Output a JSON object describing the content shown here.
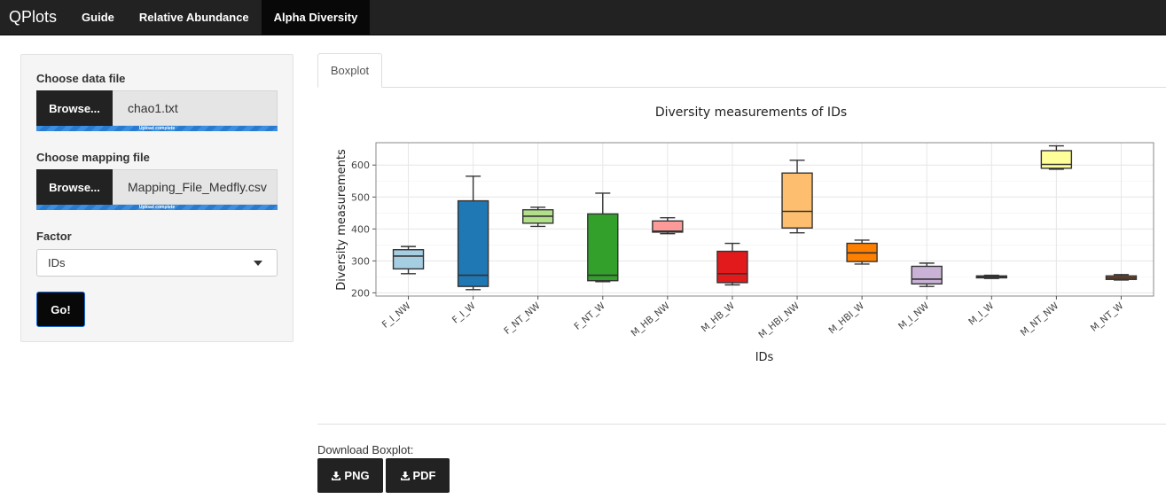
{
  "navbar": {
    "brand": "QPlots",
    "items": [
      {
        "label": "Guide"
      },
      {
        "label": "Relative Abundance"
      },
      {
        "label": "Alpha Diversity"
      }
    ]
  },
  "sidebar": {
    "data_file": {
      "label": "Choose data file",
      "browse_label": "Browse...",
      "file_name": "chao1.txt",
      "progress_text": "Upload complete"
    },
    "mapping_file": {
      "label": "Choose mapping file",
      "browse_label": "Browse...",
      "file_name": "Mapping_File_Medfly.csv",
      "progress_text": "Upload complete"
    },
    "factor": {
      "label": "Factor",
      "selected": "IDs"
    },
    "go_label": "Go!"
  },
  "tabs": [
    {
      "label": "Boxplot"
    }
  ],
  "download": {
    "label": "Download Boxplot:",
    "png_label": "PNG",
    "pdf_label": "PDF"
  },
  "chart_data": {
    "type": "box",
    "title": "Diversity measurements of IDs",
    "xlabel": "IDs",
    "ylabel": "Diversity measurements",
    "ylim": [
      190,
      670
    ],
    "yticks": [
      200,
      300,
      400,
      500,
      600
    ],
    "grid": true,
    "legend": "none",
    "categories": [
      "F_I_NW",
      "F_I_W",
      "F_NT_NW",
      "F_NT_W",
      "M_HB_NW",
      "M_HB_W",
      "M_HBI_NW",
      "M_HBI_W",
      "M_I_NW",
      "M_I_W",
      "M_NT_NW",
      "M_NT_W"
    ],
    "boxes": [
      {
        "min": 260,
        "q1": 275,
        "median": 315,
        "q3": 335,
        "max": 345,
        "color": "#a6cee3"
      },
      {
        "min": 210,
        "q1": 220,
        "median": 255,
        "q3": 488,
        "max": 565,
        "color": "#1f78b4"
      },
      {
        "min": 408,
        "q1": 418,
        "median": 440,
        "q3": 460,
        "max": 468,
        "color": "#b2df8a"
      },
      {
        "min": 235,
        "q1": 238,
        "median": 255,
        "q3": 447,
        "max": 512,
        "color": "#33a02c"
      },
      {
        "min": 385,
        "q1": 390,
        "median": 393,
        "q3": 425,
        "max": 435,
        "color": "#fb9a99"
      },
      {
        "min": 225,
        "q1": 232,
        "median": 260,
        "q3": 330,
        "max": 355,
        "color": "#e31a1c"
      },
      {
        "min": 388,
        "q1": 403,
        "median": 455,
        "q3": 575,
        "max": 615,
        "color": "#fdbf6f"
      },
      {
        "min": 290,
        "q1": 298,
        "median": 325,
        "q3": 355,
        "max": 365,
        "color": "#ff7f00"
      },
      {
        "min": 220,
        "q1": 228,
        "median": 243,
        "q3": 283,
        "max": 293,
        "color": "#cab2d6"
      },
      {
        "min": 245,
        "q1": 247,
        "median": 250,
        "q3": 253,
        "max": 255,
        "color": "#6a3d9a"
      },
      {
        "min": 587,
        "q1": 590,
        "median": 602,
        "q3": 645,
        "max": 660,
        "color": "#ffff99"
      },
      {
        "min": 240,
        "q1": 242,
        "median": 247,
        "q3": 253,
        "max": 257,
        "color": "#b15928"
      }
    ]
  }
}
